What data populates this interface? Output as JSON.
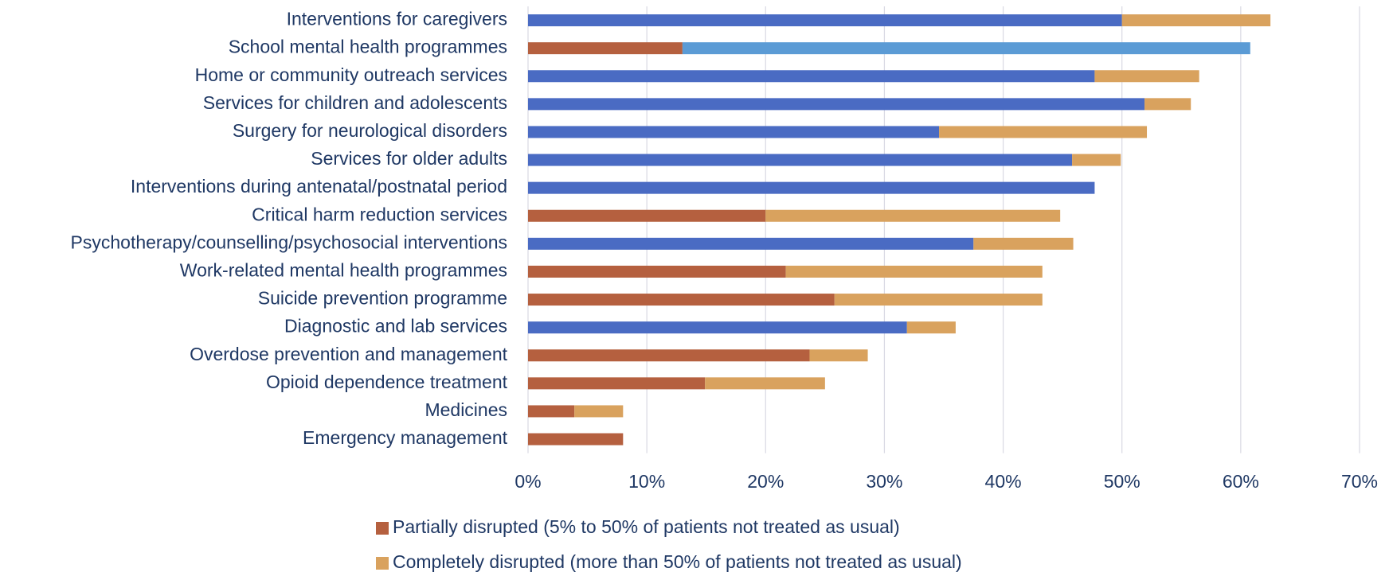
{
  "chart_data": {
    "type": "stacked_bar_horizontal",
    "categories": [
      "Interventions for caregivers",
      "School mental health programmes",
      "Home or community outreach services",
      "Services for children and adolescents",
      "Surgery for neurological disorders",
      "Services for older adults",
      "Interventions during antenatal/postnatal period",
      "Critical harm reduction services",
      "Psychotherapy/counselling/psychosocial interventions",
      "Work-related mental health programmes",
      "Suicide prevention programme",
      "Diagnostic and lab services",
      "Overdose prevention and management",
      "Opioid dependence treatment",
      "Medicines",
      "Emergency management"
    ],
    "series": [
      {
        "name": "Partially disrupted (5% to 50% of patients not treated as usual)",
        "color": "#b5603f",
        "values": [
          50.0,
          13.0,
          47.7,
          51.9,
          34.6,
          45.8,
          47.7,
          20.0,
          37.5,
          21.7,
          25.8,
          31.9,
          23.7,
          14.9,
          3.9,
          8.0
        ],
        "colors": [
          "#4a6bc3",
          "#b5603f",
          "#4a6bc3",
          "#4a6bc3",
          "#4a6bc3",
          "#4a6bc3",
          "#4a6bc3",
          "#b5603f",
          "#4a6bc3",
          "#b5603f",
          "#b5603f",
          "#4a6bc3",
          "#b5603f",
          "#b5603f",
          "#b5603f",
          "#b5603f"
        ]
      },
      {
        "name": "Completely disrupted (more than 50% of patients not treated as usual)",
        "color": "#d9a25e",
        "values": [
          12.5,
          47.8,
          8.8,
          3.9,
          17.5,
          4.1,
          0,
          24.8,
          8.4,
          21.6,
          17.5,
          4.1,
          4.9,
          10.1,
          4.1,
          0
        ],
        "colors": [
          "#d9a25e",
          "#5b9bd5",
          "#d9a25e",
          "#d9a25e",
          "#d9a25e",
          "#d9a25e",
          "#d9a25e",
          "#d9a25e",
          "#d9a25e",
          "#d9a25e",
          "#d9a25e",
          "#d9a25e",
          "#d9a25e",
          "#d9a25e",
          "#d9a25e",
          "#d9a25e"
        ]
      }
    ],
    "xlim": [
      0,
      70
    ],
    "xticks": [
      {
        "value": 0,
        "label": "0%"
      },
      {
        "value": 10,
        "label": "10%"
      },
      {
        "value": 20,
        "label": "20%"
      },
      {
        "value": 30,
        "label": "30%"
      },
      {
        "value": 40,
        "label": "40%"
      },
      {
        "value": 50,
        "label": "50%"
      },
      {
        "value": 60,
        "label": "60%"
      },
      {
        "value": 70,
        "label": "70%"
      }
    ],
    "grid": true,
    "legend": "bottom"
  }
}
